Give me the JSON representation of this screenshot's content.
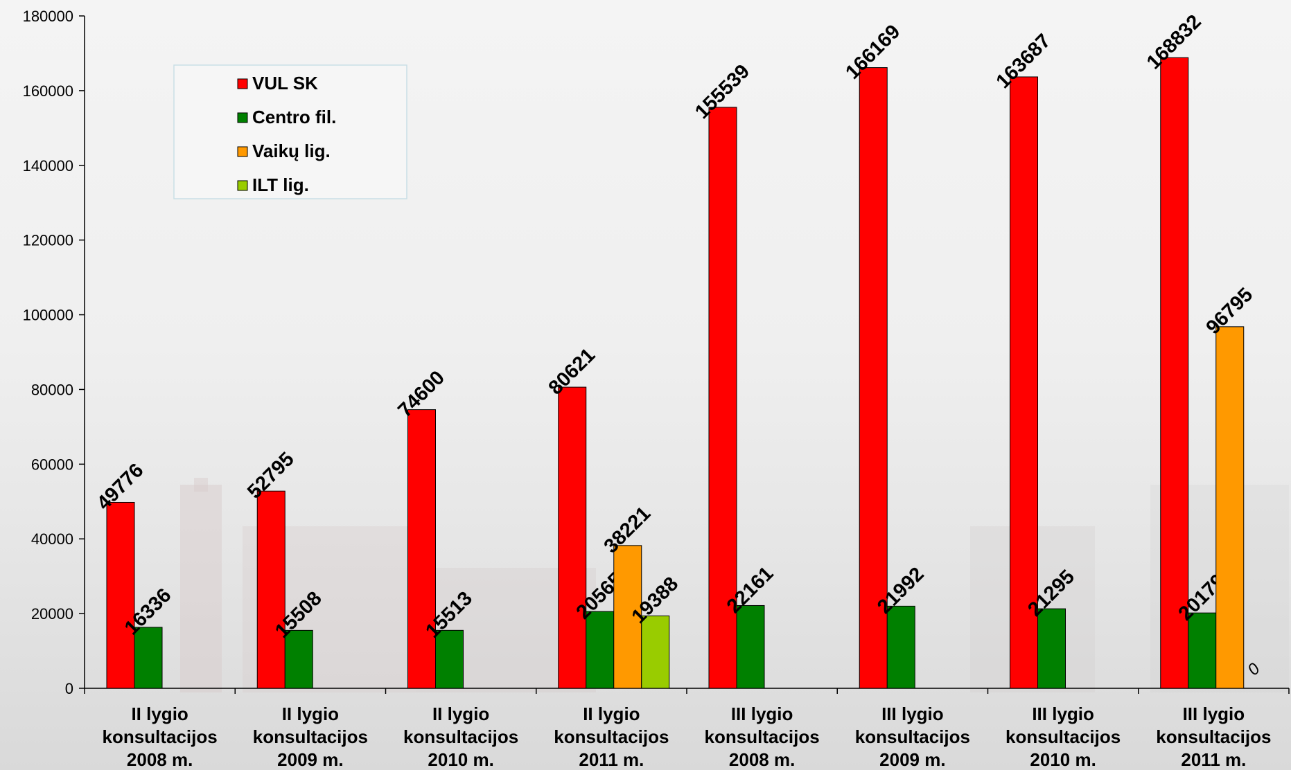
{
  "chart_data": {
    "type": "bar",
    "title": "",
    "xlabel": "",
    "ylabel": "",
    "ylim": [
      0,
      180000
    ],
    "yticks": [
      0,
      20000,
      40000,
      60000,
      80000,
      100000,
      120000,
      140000,
      160000,
      180000
    ],
    "grid": false,
    "legend_position": "top-left",
    "categories": [
      [
        "II lygio",
        "konsultacijos",
        "2008 m."
      ],
      [
        "II lygio",
        "konsultacijos",
        "2009 m."
      ],
      [
        "II lygio",
        "konsultacijos",
        "2010 m."
      ],
      [
        "II lygio",
        "konsultacijos",
        "2011 m."
      ],
      [
        "III lygio",
        "konsultacijos",
        "2008 m."
      ],
      [
        "III lygio",
        "konsultacijos",
        "2009 m."
      ],
      [
        "III lygio",
        "konsultacijos",
        "2010 m."
      ],
      [
        "III lygio",
        "konsultacijos",
        "2011 m."
      ]
    ],
    "series": [
      {
        "name": "VUL SK",
        "color": "#ff0000",
        "values": [
          49776,
          52795,
          74600,
          80621,
          155539,
          166169,
          163687,
          168832
        ]
      },
      {
        "name": "Centro fil.",
        "color": "#008000",
        "values": [
          16336,
          15508,
          15513,
          20565,
          22161,
          21992,
          21295,
          20179
        ]
      },
      {
        "name": "Vaikų lig.",
        "color": "#ff9900",
        "values": [
          null,
          null,
          null,
          38221,
          null,
          null,
          null,
          96795
        ]
      },
      {
        "name": "ILT lig.",
        "color": "#99cc00",
        "values": [
          null,
          null,
          null,
          19388,
          null,
          null,
          null,
          0
        ]
      }
    ]
  }
}
